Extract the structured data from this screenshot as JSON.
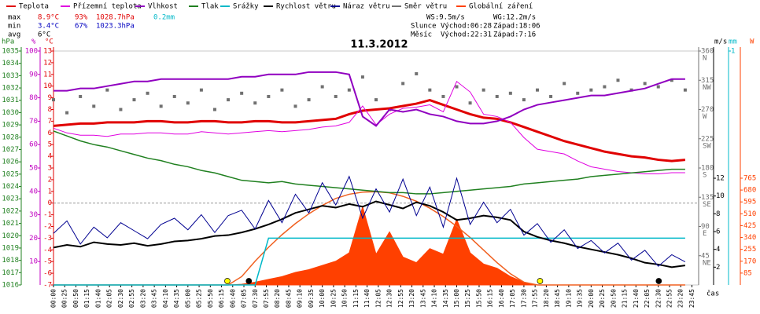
{
  "chart_data": {
    "type": "line",
    "title": "11.3.2012",
    "xlabel": "čas",
    "x": [
      "00:00",
      "00:30",
      "01:00",
      "01:30",
      "02:00",
      "02:30",
      "03:00",
      "03:30",
      "04:00",
      "04:30",
      "05:00",
      "05:30",
      "06:00",
      "06:30",
      "07:00",
      "07:30",
      "08:00",
      "08:30",
      "09:00",
      "09:30",
      "10:00",
      "10:30",
      "11:00",
      "11:30",
      "12:00",
      "12:30",
      "13:00",
      "13:30",
      "14:00",
      "14:30",
      "15:00",
      "15:30",
      "16:00",
      "16:30",
      "17:00",
      "17:30",
      "18:00",
      "18:30",
      "19:00",
      "19:30",
      "20:00",
      "20:30",
      "21:00",
      "21:30",
      "22:00",
      "22:30",
      "23:00",
      "23:30"
    ],
    "xticks": [
      "00:00",
      "00:25",
      "00:50",
      "01:15",
      "01:40",
      "02:05",
      "02:30",
      "02:55",
      "03:20",
      "03:45",
      "04:10",
      "04:35",
      "05:00",
      "05:25",
      "05:50",
      "06:15",
      "06:40",
      "07:05",
      "07:30",
      "07:55",
      "08:20",
      "08:45",
      "09:10",
      "09:35",
      "10:00",
      "10:25",
      "10:50",
      "11:15",
      "11:40",
      "12:05",
      "12:30",
      "12:55",
      "13:20",
      "13:45",
      "14:10",
      "14:35",
      "15:00",
      "15:25",
      "15:50",
      "16:15",
      "16:40",
      "17:05",
      "17:30",
      "17:55",
      "18:20",
      "18:45",
      "19:10",
      "19:35",
      "20:00",
      "20:25",
      "20:50",
      "21:15",
      "21:40",
      "22:05",
      "22:30",
      "22:55",
      "23:20",
      "23:45"
    ],
    "axes": {
      "hpa": {
        "label": "hPa",
        "color": "#208020",
        "lim": [
          1016,
          1035
        ],
        "ticks": [
          1035,
          1034,
          1033,
          1032,
          1031,
          1030,
          1029,
          1028,
          1027,
          1026,
          1025,
          1024,
          1023,
          1022,
          1021,
          1020,
          1019,
          1018,
          1017,
          1016
        ]
      },
      "pct": {
        "label": "%",
        "color": "#c000c0",
        "lim": [
          0,
          100
        ],
        "ticks": [
          100,
          90,
          80,
          70,
          60,
          50,
          40,
          30,
          20,
          10
        ]
      },
      "temp": {
        "label": "°C",
        "color": "#e00000",
        "lim": [
          -7,
          13
        ],
        "ticks": [
          13,
          12,
          11,
          10,
          9,
          8,
          7,
          6,
          5,
          4,
          3,
          2,
          1,
          0,
          -1,
          -2,
          -3,
          -4,
          -5,
          -6,
          -7
        ],
        "zero_line": true
      },
      "dir": {
        "color": "#707070",
        "lim": [
          0,
          360
        ],
        "ticks": [
          360,
          315,
          270,
          225,
          180,
          135,
          90,
          45
        ],
        "tick_names": [
          "N",
          "NW",
          "W",
          "SW",
          "S",
          "SE",
          "E",
          "NE"
        ]
      },
      "ms": {
        "label": "m/s",
        "color": "#000000",
        "lim": [
          0,
          26.3
        ],
        "ticks": [
          12,
          10,
          8,
          6,
          4,
          2
        ]
      },
      "mm": {
        "label": "mm",
        "color": "#00b8c8",
        "lim": [
          0,
          1
        ],
        "ticks": [
          1
        ]
      },
      "w": {
        "label": "W",
        "color": "#ff4000",
        "lim": [
          0,
          1676
        ],
        "ticks": [
          765,
          680,
          595,
          510,
          425,
          340,
          255,
          170,
          85
        ]
      }
    },
    "series": [
      {
        "name": "Teplota",
        "color": "#e00000",
        "axis": "temp",
        "style": "line",
        "width": 3,
        "values": [
          6.6,
          6.7,
          6.8,
          6.8,
          6.9,
          6.9,
          6.9,
          7.0,
          7.0,
          6.9,
          6.9,
          7.0,
          7.0,
          6.9,
          6.9,
          7.0,
          7.0,
          6.9,
          6.9,
          7.0,
          7.1,
          7.2,
          7.6,
          7.9,
          8.0,
          8.1,
          8.3,
          8.5,
          8.8,
          8.4,
          8.0,
          7.6,
          7.3,
          7.2,
          6.9,
          6.5,
          6.1,
          5.7,
          5.3,
          5.0,
          4.7,
          4.4,
          4.2,
          4.0,
          3.9,
          3.7,
          3.6,
          3.7
        ]
      },
      {
        "name": "Přízemní teplota",
        "color": "#e000e0",
        "axis": "temp",
        "style": "line",
        "width": 1,
        "values": [
          6.4,
          6.0,
          5.8,
          5.8,
          5.7,
          5.9,
          5.9,
          6.0,
          6.0,
          5.9,
          5.9,
          6.1,
          6.0,
          5.9,
          6.0,
          6.1,
          6.2,
          6.1,
          6.2,
          6.3,
          6.5,
          6.6,
          6.9,
          8.3,
          6.7,
          7.6,
          8.1,
          8.2,
          8.4,
          7.8,
          10.4,
          9.5,
          7.6,
          7.4,
          6.9,
          5.6,
          4.6,
          4.4,
          4.2,
          3.6,
          3.1,
          2.9,
          2.7,
          2.6,
          2.5,
          2.5,
          2.6,
          2.6
        ]
      },
      {
        "name": "Vlhkost",
        "color": "#9000c0",
        "axis": "pct",
        "style": "line",
        "width": 2,
        "values": [
          83,
          83,
          84,
          84,
          85,
          86,
          87,
          87,
          88,
          88,
          88,
          88,
          88,
          88,
          89,
          89,
          90,
          90,
          90,
          91,
          91,
          91,
          90,
          72,
          68,
          75,
          74,
          75,
          73,
          72,
          70,
          69,
          69,
          70,
          72,
          75,
          77,
          78,
          79,
          80,
          81,
          81,
          82,
          83,
          84,
          86,
          88,
          88
        ]
      },
      {
        "name": "Tlak",
        "color": "#208020",
        "axis": "hpa",
        "style": "line",
        "width": 1.5,
        "values": [
          1028.5,
          1028.1,
          1027.7,
          1027.4,
          1027.2,
          1026.9,
          1026.6,
          1026.3,
          1026.1,
          1025.8,
          1025.6,
          1025.3,
          1025.1,
          1024.8,
          1024.5,
          1024.4,
          1024.3,
          1024.4,
          1024.2,
          1024.1,
          1024.0,
          1023.9,
          1023.8,
          1023.7,
          1023.6,
          1023.5,
          1023.5,
          1023.4,
          1023.4,
          1023.5,
          1023.6,
          1023.7,
          1023.8,
          1023.9,
          1024.0,
          1024.2,
          1024.3,
          1024.4,
          1024.5,
          1024.6,
          1024.8,
          1024.9,
          1025.0,
          1025.1,
          1025.2,
          1025.3,
          1025.4,
          1025.4
        ]
      },
      {
        "name": "Srážky",
        "color": "#00b8c8",
        "axis": "mm",
        "style": "line",
        "width": 1.5,
        "values": [
          0,
          0,
          0,
          0,
          0,
          0,
          0,
          0,
          0,
          0,
          0,
          0,
          0,
          0,
          0,
          0,
          0.2,
          0.2,
          0.2,
          0.2,
          0.2,
          0.2,
          0.2,
          0.2,
          0.2,
          0.2,
          0.2,
          0.2,
          0.2,
          0.2,
          0.2,
          0.2,
          0.2,
          0.2,
          0.2,
          0.2,
          0.2,
          0.2,
          0.2,
          0.2,
          0.2,
          0.2,
          0.2,
          0.2,
          0.2,
          0.2,
          0.2,
          0.2
        ]
      },
      {
        "name": "Rychlost větru",
        "color": "#000000",
        "axis": "ms",
        "style": "line",
        "width": 2,
        "values": [
          4.2,
          4.5,
          4.3,
          4.8,
          4.6,
          4.5,
          4.7,
          4.4,
          4.6,
          4.9,
          5.0,
          5.2,
          5.5,
          5.6,
          5.9,
          6.3,
          6.8,
          7.4,
          8.1,
          8.5,
          8.9,
          8.7,
          9.1,
          8.8,
          9.4,
          9.0,
          8.6,
          9.3,
          8.9,
          8.2,
          7.3,
          7.5,
          7.8,
          7.6,
          7.3,
          6.0,
          5.4,
          5.0,
          4.7,
          4.3,
          4.0,
          3.7,
          3.4,
          3.0,
          2.5,
          2.3,
          2.0,
          2.2
        ]
      },
      {
        "name": "Náraz větru",
        "color": "#000090",
        "axis": "ms",
        "style": "line",
        "width": 1,
        "values": [
          5.8,
          7.2,
          4.6,
          6.5,
          5.3,
          7.0,
          6.1,
          5.2,
          6.8,
          7.5,
          6.2,
          7.9,
          5.9,
          7.8,
          8.4,
          6.3,
          9.5,
          7.0,
          10.2,
          8.1,
          11.5,
          9.0,
          12.2,
          7.5,
          10.8,
          8.2,
          11.9,
          7.8,
          11.0,
          6.5,
          12.0,
          6.8,
          9.3,
          7.0,
          8.5,
          5.6,
          6.9,
          4.8,
          6.2,
          4.1,
          5.0,
          3.6,
          4.7,
          2.8,
          3.9,
          2.1,
          3.4,
          2.6
        ]
      },
      {
        "name": "Směr větru",
        "color": "#707070",
        "axis": "dir",
        "style": "points",
        "width": 4,
        "values": [
          285,
          265,
          290,
          275,
          300,
          270,
          285,
          295,
          275,
          290,
          280,
          300,
          270,
          285,
          295,
          280,
          290,
          300,
          275,
          285,
          305,
          290,
          300,
          320,
          285,
          270,
          310,
          325,
          300,
          290,
          305,
          280,
          300,
          290,
          295,
          285,
          300,
          290,
          310,
          295,
          300,
          305,
          315,
          300,
          310,
          305,
          315,
          300
        ]
      },
      {
        "name": "Globální záření",
        "color": "#ff4000",
        "axis": "w",
        "style": "area",
        "width": 1,
        "values": [
          0,
          0,
          0,
          0,
          0,
          0,
          0,
          0,
          0,
          0,
          0,
          0,
          0,
          0,
          5,
          20,
          40,
          60,
          90,
          110,
          140,
          170,
          230,
          560,
          220,
          380,
          200,
          160,
          260,
          220,
          470,
          230,
          150,
          120,
          60,
          20,
          0,
          0,
          0,
          0,
          0,
          0,
          0,
          0,
          0,
          0,
          0,
          0
        ]
      }
    ],
    "reference_curve": {
      "color": "#f06020",
      "axis": "w",
      "values": [
        0,
        0,
        0,
        0,
        0,
        0,
        0,
        0,
        0,
        0,
        0,
        0,
        0,
        0,
        60,
        170,
        270,
        360,
        440,
        510,
        570,
        620,
        650,
        665,
        668,
        660,
        635,
        600,
        550,
        490,
        420,
        340,
        250,
        160,
        80,
        20,
        0,
        0,
        0,
        0,
        0,
        0,
        0,
        0,
        0,
        0,
        0,
        0
      ]
    },
    "markers": [
      {
        "time": "06:28",
        "color": "#ffff00"
      },
      {
        "time": "18:06",
        "color": "#ffff00"
      },
      {
        "time": "07:16",
        "color": "#000000"
      },
      {
        "time": "22:31",
        "color": "#000000"
      }
    ],
    "stats": [
      {
        "color": "#e00000",
        "cells": [
          "max",
          "8.9°C",
          "93%",
          "1028.7hPa",
          "0.2mm"
        ]
      },
      {
        "color": "#0000c0",
        "cells": [
          "min",
          "3.4°C",
          "67%",
          "1023.3hPa"
        ]
      },
      {
        "color": "#000000",
        "cells": [
          "avg",
          "6°C"
        ]
      }
    ],
    "info": [
      [
        "WS:9.5m/s",
        "WG:12.2m/s"
      ],
      [
        "Slunce",
        "Východ:06:28",
        "Západ:18:06"
      ],
      [
        "Měsíc",
        "Východ:22:31",
        "Západ:7:16"
      ]
    ]
  }
}
